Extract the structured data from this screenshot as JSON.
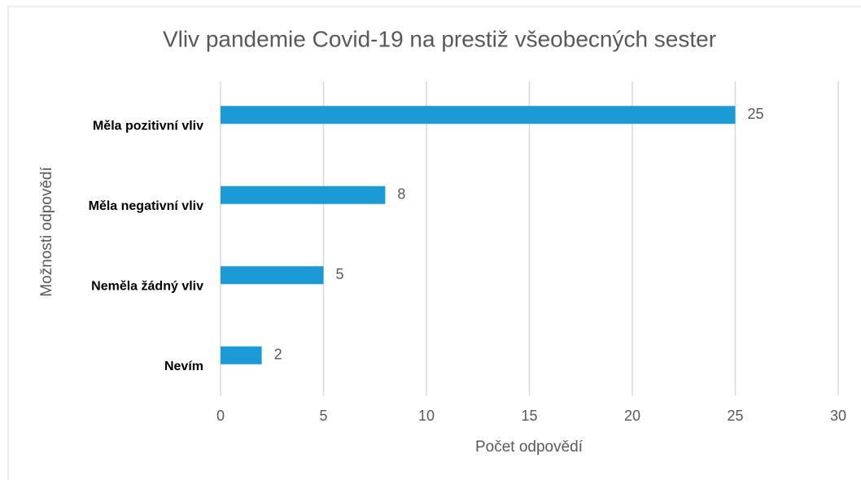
{
  "chart_data": {
    "type": "bar",
    "orientation": "horizontal",
    "title": "Vliv pandemie Covid-19 na prestiž všeobecných sester",
    "x_label": "Počet odpovědí",
    "y_label": "Možnosti odpovědí",
    "categories": [
      "Měla pozitivní vliv",
      "Měla negativní vliv",
      "Neměla žádný vliv",
      "Nevím"
    ],
    "values": [
      25,
      8,
      5,
      2
    ],
    "color": "#1b9ad6",
    "xlim": [
      0,
      30
    ],
    "xticks": [
      0,
      5,
      10,
      15,
      20,
      25,
      30
    ],
    "grid": true,
    "data_labels": true
  }
}
